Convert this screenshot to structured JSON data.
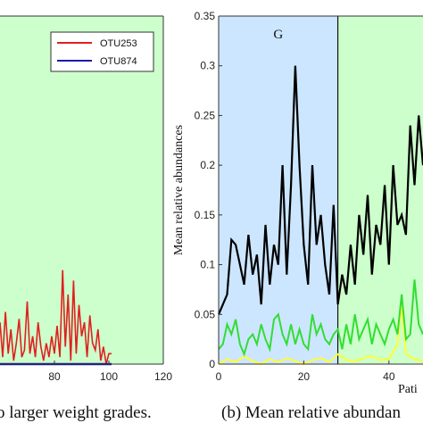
{
  "captions": {
    "left": "o larger weight grades.",
    "right": "(b) Mean relative abundan"
  },
  "colors": {
    "panel_bg_green": "#ccffcc",
    "panel_bg_blue": "#cce6ff",
    "otu253": "#e02020",
    "otu874": "#1a1aa8",
    "black_series": "#000000",
    "green_series": "#33dd33",
    "yellow_series": "#ffff33"
  },
  "chart_data": [
    {
      "type": "line",
      "title": "",
      "xlabel": "",
      "ylabel": "",
      "xlim": [
        60,
        120
      ],
      "ylim": [
        0,
        1
      ],
      "x_ticks": [
        "80",
        "100",
        "120"
      ],
      "legend": "top-right",
      "series": [
        {
          "name": "OTU253",
          "x": [
            60,
            61,
            62,
            63,
            64,
            65,
            66,
            67,
            68,
            69,
            70,
            71,
            72,
            73,
            74,
            75,
            76,
            77,
            78,
            79,
            80,
            81,
            82,
            83,
            84,
            85,
            86,
            87,
            88,
            89,
            90,
            91,
            92,
            93,
            94,
            95,
            96,
            97,
            98,
            99,
            100,
            101
          ],
          "values": [
            0.12,
            0.02,
            0.15,
            0.03,
            0.1,
            0.01,
            0.06,
            0.13,
            0.02,
            0.04,
            0.18,
            0.03,
            0.08,
            0.02,
            0.12,
            0.05,
            0.01,
            0.06,
            0.02,
            0.08,
            0.03,
            0.11,
            0.02,
            0.27,
            0.05,
            0.2,
            0.01,
            0.24,
            0.03,
            0.17,
            0.08,
            0.12,
            0.02,
            0.14,
            0.06,
            0.04,
            0.1,
            0.01,
            0.05,
            0.0,
            0.03,
            0.03
          ]
        },
        {
          "name": "OTU874",
          "x": [
            60,
            101
          ],
          "values": [
            0.0,
            0.0
          ]
        }
      ]
    },
    {
      "type": "line",
      "title": "",
      "xlabel": "Pati",
      "ylabel": "Mean relative abundances",
      "xlim": [
        0,
        48
      ],
      "ylim": [
        0,
        0.35
      ],
      "x_ticks": [
        "0",
        "20",
        "40"
      ],
      "y_ticks": [
        "0",
        "0.05",
        "0.1",
        "0.15",
        "0.2",
        "0.25",
        "0.3",
        "0.35"
      ],
      "regions": [
        {
          "label": "G",
          "x_start": 0,
          "x_end": 28
        }
      ],
      "series": [
        {
          "name": "",
          "x": [
            0,
            1,
            2,
            3,
            4,
            5,
            6,
            7,
            8,
            9,
            10,
            11,
            12,
            13,
            14,
            15,
            16,
            17,
            18,
            19,
            20,
            21,
            22,
            23,
            24,
            25,
            26,
            27,
            28,
            29,
            30,
            31,
            32,
            33,
            34,
            35,
            36,
            37,
            38,
            39,
            40,
            41,
            42,
            43,
            44,
            45,
            46,
            47,
            48
          ],
          "values": [
            0.05,
            0.06,
            0.07,
            0.125,
            0.12,
            0.1,
            0.08,
            0.13,
            0.09,
            0.11,
            0.06,
            0.14,
            0.08,
            0.12,
            0.1,
            0.2,
            0.09,
            0.18,
            0.3,
            0.2,
            0.12,
            0.08,
            0.2,
            0.12,
            0.15,
            0.1,
            0.07,
            0.16,
            0.06,
            0.09,
            0.07,
            0.12,
            0.08,
            0.15,
            0.11,
            0.17,
            0.09,
            0.14,
            0.12,
            0.18,
            0.1,
            0.2,
            0.14,
            0.15,
            0.13,
            0.24,
            0.18,
            0.25,
            0.2
          ]
        },
        {
          "name": "",
          "x": [
            0,
            1,
            2,
            3,
            4,
            5,
            6,
            7,
            8,
            9,
            10,
            11,
            12,
            13,
            14,
            15,
            16,
            17,
            18,
            19,
            20,
            21,
            22,
            23,
            24,
            25,
            26,
            27,
            28,
            29,
            30,
            31,
            32,
            33,
            34,
            35,
            36,
            37,
            38,
            39,
            40,
            41,
            42,
            43,
            44,
            45,
            46,
            47,
            48
          ],
          "values": [
            0.015,
            0.02,
            0.04,
            0.03,
            0.045,
            0.02,
            0.01,
            0.025,
            0.03,
            0.02,
            0.04,
            0.025,
            0.015,
            0.045,
            0.05,
            0.03,
            0.02,
            0.04,
            0.02,
            0.035,
            0.02,
            0.015,
            0.05,
            0.03,
            0.04,
            0.025,
            0.02,
            0.03,
            0.035,
            0.015,
            0.04,
            0.02,
            0.05,
            0.025,
            0.035,
            0.045,
            0.02,
            0.04,
            0.03,
            0.02,
            0.035,
            0.045,
            0.03,
            0.07,
            0.025,
            0.03,
            0.085,
            0.04,
            0.03
          ]
        },
        {
          "name": "",
          "x": [
            0,
            2,
            4,
            6,
            8,
            10,
            12,
            14,
            16,
            18,
            20,
            22,
            24,
            26,
            28,
            30,
            32,
            34,
            36,
            38,
            40,
            42,
            43,
            44,
            46,
            48
          ],
          "values": [
            0.0,
            0.005,
            0.002,
            0.008,
            0.003,
            0.0,
            0.005,
            0.002,
            0.006,
            0.003,
            0.0,
            0.004,
            0.006,
            0.002,
            0.01,
            0.004,
            0.003,
            0.006,
            0.008,
            0.004,
            0.005,
            0.02,
            0.06,
            0.01,
            0.005,
            0.003
          ]
        }
      ]
    }
  ]
}
